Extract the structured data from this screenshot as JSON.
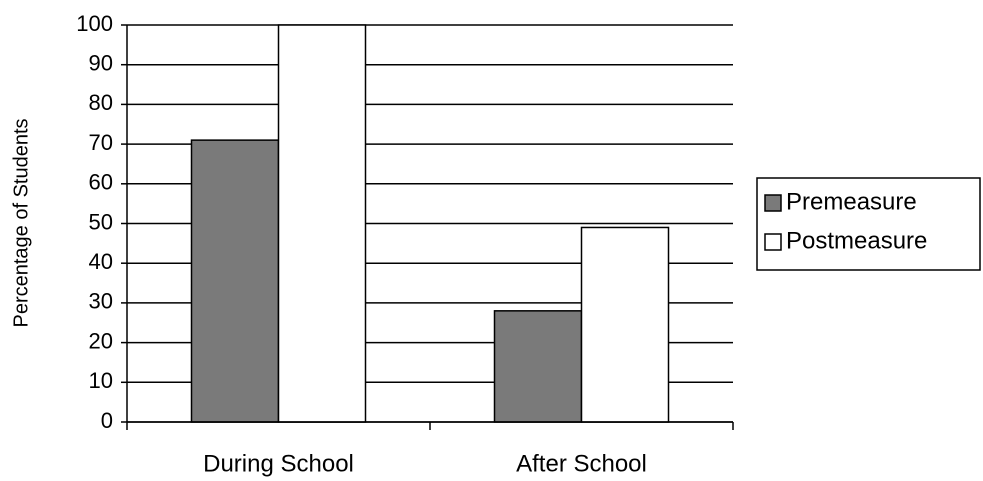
{
  "chart_data": {
    "type": "bar",
    "categories": [
      "During School",
      "After School"
    ],
    "series": [
      {
        "name": "Premeasure",
        "color": "#7a7a7a",
        "values": [
          71,
          28
        ]
      },
      {
        "name": "Postmeasure",
        "color": "#ffffff",
        "values": [
          100,
          49
        ]
      }
    ],
    "y_label": "Percentage of Students",
    "ylim": [
      0,
      100
    ],
    "yticks": [
      0,
      10,
      20,
      30,
      40,
      50,
      60,
      70,
      80,
      90,
      100
    ],
    "grid": true,
    "legend": "right"
  }
}
